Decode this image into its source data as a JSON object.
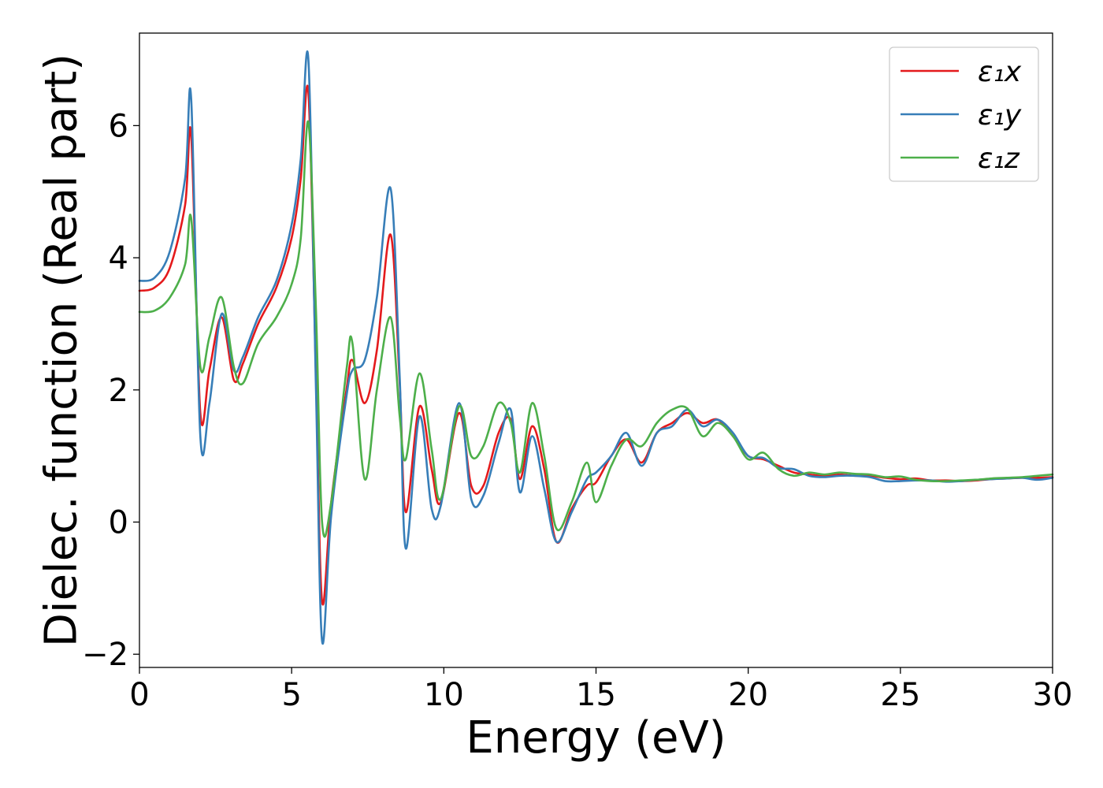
{
  "chart_data": {
    "type": "line",
    "title": "",
    "xlabel": "Energy (eV)",
    "ylabel": "Dielec. function (Real part)",
    "xlim": [
      0,
      30
    ],
    "ylim": [
      -2.2,
      7.4
    ],
    "x_ticks": [
      0,
      5,
      10,
      15,
      20,
      25,
      30
    ],
    "x_tick_labels": [
      "0",
      "5",
      "10",
      "15",
      "20",
      "25",
      "30"
    ],
    "y_ticks": [
      -2,
      0,
      2,
      4,
      6
    ],
    "y_tick_labels": [
      "−2",
      "0",
      "2",
      "4",
      "6"
    ],
    "grid": false,
    "legend_position": "top-right",
    "x": [
      0,
      0.5,
      1.0,
      1.5,
      1.7,
      2.0,
      2.3,
      2.7,
      3.1,
      3.4,
      3.9,
      4.5,
      5.0,
      5.3,
      5.55,
      5.8,
      6.0,
      6.3,
      6.8,
      7.0,
      7.4,
      7.8,
      8.25,
      8.55,
      8.75,
      9.2,
      9.6,
      9.9,
      10.5,
      10.9,
      11.3,
      11.8,
      12.2,
      12.5,
      12.9,
      13.3,
      13.7,
      14.2,
      14.7,
      15.0,
      15.5,
      16.0,
      16.5,
      17.0,
      17.5,
      18.0,
      18.5,
      19.0,
      19.5,
      20.0,
      20.5,
      21.0,
      21.5,
      22.0,
      22.5,
      23.0,
      23.5,
      24.0,
      24.5,
      25.0,
      25.5,
      26.0,
      26.5,
      27.0,
      27.5,
      28.0,
      28.5,
      29.0,
      29.5,
      30.0
    ],
    "series": [
      {
        "name": "ε₁x",
        "color": "#e41a1c",
        "values": [
          3.5,
          3.55,
          3.85,
          4.8,
          5.85,
          1.65,
          2.3,
          3.1,
          2.15,
          2.4,
          3.0,
          3.55,
          4.3,
          5.2,
          6.5,
          2.2,
          -1.2,
          0.3,
          2.0,
          2.45,
          1.8,
          2.6,
          4.35,
          2.1,
          0.15,
          1.75,
          0.8,
          0.3,
          1.65,
          0.55,
          0.55,
          1.35,
          1.55,
          0.65,
          1.45,
          0.8,
          -0.3,
          0.2,
          0.55,
          0.6,
          1.0,
          1.25,
          0.9,
          1.35,
          1.5,
          1.65,
          1.5,
          1.55,
          1.3,
          1.0,
          0.95,
          0.85,
          0.75,
          0.72,
          0.7,
          0.72,
          0.7,
          0.7,
          0.67,
          0.65,
          0.66,
          0.63,
          0.63,
          0.62,
          0.63,
          0.65,
          0.66,
          0.67,
          0.67,
          0.68
        ]
      },
      {
        "name": "ε₁y",
        "color": "#377eb8",
        "values": [
          3.65,
          3.7,
          4.1,
          5.2,
          6.4,
          1.3,
          1.8,
          3.15,
          2.3,
          2.5,
          3.1,
          3.65,
          4.5,
          5.5,
          7.0,
          2.0,
          -1.8,
          0.1,
          1.9,
          2.3,
          2.45,
          3.4,
          5.05,
          2.2,
          -0.4,
          1.6,
          0.2,
          0.25,
          1.8,
          0.35,
          0.4,
          1.2,
          1.7,
          0.45,
          1.3,
          0.5,
          -0.3,
          0.15,
          0.65,
          0.75,
          1.0,
          1.35,
          0.85,
          1.35,
          1.45,
          1.7,
          1.45,
          1.55,
          1.35,
          1.0,
          0.97,
          0.82,
          0.8,
          0.7,
          0.68,
          0.7,
          0.7,
          0.68,
          0.62,
          0.62,
          0.63,
          0.63,
          0.61,
          0.62,
          0.64,
          0.65,
          0.66,
          0.67,
          0.64,
          0.67
        ]
      },
      {
        "name": "ε₁z",
        "color": "#4daf4a",
        "values": [
          3.18,
          3.2,
          3.4,
          3.9,
          4.6,
          2.35,
          2.8,
          3.4,
          2.35,
          2.1,
          2.7,
          3.1,
          3.6,
          4.3,
          6.05,
          3.2,
          0.0,
          0.3,
          2.3,
          2.7,
          0.65,
          2.0,
          3.1,
          1.6,
          0.95,
          2.25,
          1.1,
          0.35,
          1.75,
          1.0,
          1.15,
          1.8,
          1.5,
          0.75,
          1.8,
          1.0,
          -0.1,
          0.3,
          0.9,
          0.3,
          0.85,
          1.25,
          1.15,
          1.5,
          1.7,
          1.72,
          1.3,
          1.5,
          1.3,
          0.95,
          1.05,
          0.8,
          0.7,
          0.75,
          0.72,
          0.75,
          0.73,
          0.72,
          0.68,
          0.69,
          0.64,
          0.62,
          0.62,
          0.63,
          0.64,
          0.66,
          0.67,
          0.68,
          0.7,
          0.72
        ]
      }
    ]
  }
}
